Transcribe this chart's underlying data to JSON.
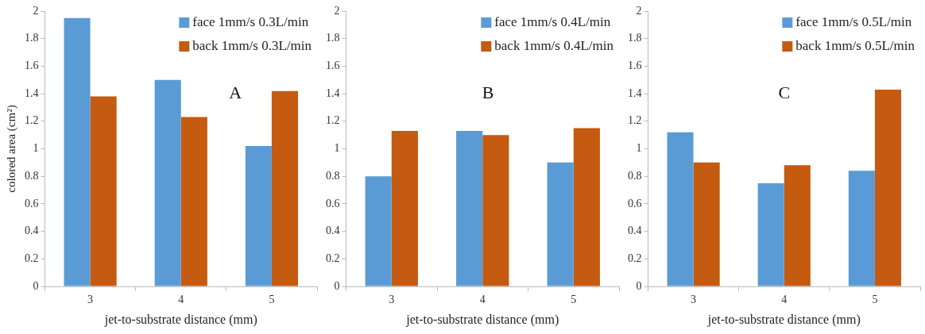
{
  "chart_data": [
    {
      "type": "bar",
      "categories": [
        "3",
        "4",
        "5"
      ],
      "xlabel": "jet-to-substrate distance (mm)",
      "ylabel": "colored area (cm²)",
      "annotations": [
        "A"
      ],
      "ylim": [
        0,
        2
      ],
      "yticks": [
        0,
        0.2,
        0.4,
        0.6,
        0.8,
        1,
        1.2,
        1.4,
        1.6,
        1.8,
        2
      ],
      "grid": false,
      "legend": "top right",
      "series": [
        {
          "name": "face 1mm/s 0.3L/min",
          "color": "#5b9bd5",
          "values": [
            1.95,
            1.5,
            1.02
          ]
        },
        {
          "name": "back 1mm/s 0.3L/min",
          "color": "#c55a11",
          "values": [
            1.38,
            1.23,
            1.42
          ]
        }
      ]
    },
    {
      "type": "bar",
      "categories": [
        "3",
        "4",
        "5"
      ],
      "xlabel": "jet-to-substrate distance (mm)",
      "annotations": [
        "B"
      ],
      "ylim": [
        0,
        2
      ],
      "yticks": [
        0,
        0.2,
        0.4,
        0.6,
        0.8,
        1,
        1.2,
        1.4,
        1.6,
        1.8,
        2
      ],
      "grid": false,
      "legend": "top right",
      "series": [
        {
          "name": "face 1mm/s 0.4L/min",
          "color": "#5b9bd5",
          "values": [
            0.8,
            1.13,
            0.9
          ]
        },
        {
          "name": "back 1mm/s 0.4L/min",
          "color": "#c55a11",
          "values": [
            1.13,
            1.1,
            1.15
          ]
        }
      ]
    },
    {
      "type": "bar",
      "categories": [
        "3",
        "4",
        "5"
      ],
      "xlabel": "jet-to-substrate distance (mm)",
      "annotations": [
        "C"
      ],
      "ylim": [
        0,
        2
      ],
      "yticks": [
        0,
        0.2,
        0.4,
        0.6,
        0.8,
        1,
        1.2,
        1.4,
        1.6,
        1.8,
        2
      ],
      "grid": false,
      "legend": "top right",
      "series": [
        {
          "name": "face 1mm/s 0.5L/min",
          "color": "#5b9bd5",
          "values": [
            1.12,
            0.75,
            0.84
          ]
        },
        {
          "name": "back 1mm/s 0.5L/min",
          "color": "#c55a11",
          "values": [
            0.9,
            0.88,
            1.43
          ]
        }
      ]
    }
  ]
}
